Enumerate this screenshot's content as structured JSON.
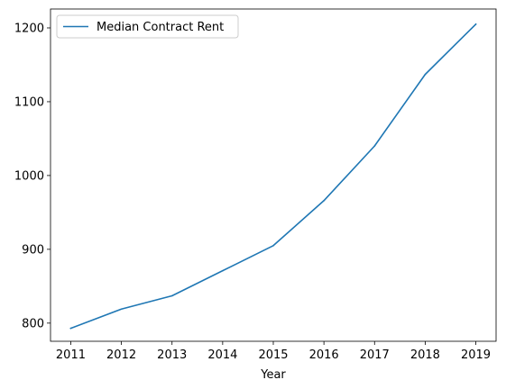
{
  "chart_data": {
    "type": "line",
    "title": "",
    "xlabel": "Year",
    "ylabel": "",
    "x": [
      2011,
      2012,
      2013,
      2014,
      2015,
      2016,
      2017,
      2018,
      2019
    ],
    "series": [
      {
        "name": "Median Contract Rent",
        "values": [
          793,
          819,
          837,
          871,
          905,
          966,
          1040,
          1137,
          1205
        ],
        "color": "#1f77b4"
      }
    ],
    "xlim": [
      2010.6,
      2019.4
    ],
    "ylim": [
      775.4,
      1225.6
    ],
    "xticks": [
      "2011",
      "2012",
      "2013",
      "2014",
      "2015",
      "2016",
      "2017",
      "2018",
      "2019"
    ],
    "yticks": [
      "800",
      "900",
      "1000",
      "1100",
      "1200"
    ],
    "grid": false,
    "legend_position": "top-left"
  }
}
